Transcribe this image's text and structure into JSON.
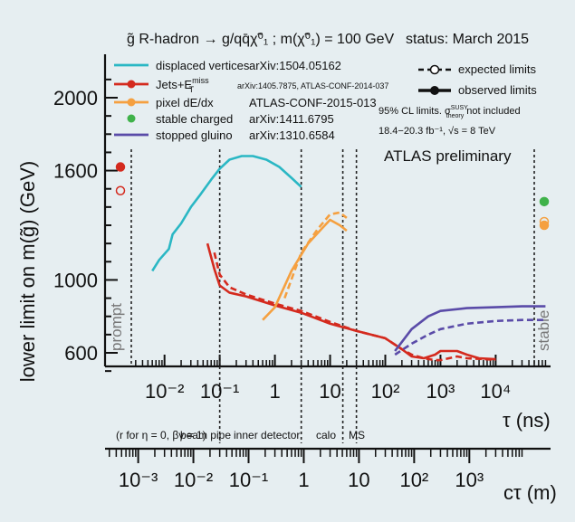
{
  "chart_data": {
    "type": "line",
    "title": "g̃ R-hadron → g/qq̄χ̃⁰₁ ; m(χ̃⁰₁) = 100 GeV",
    "status": "status: March 2015",
    "ylabel": "lower limit on m(g̃) (GeV)",
    "xlabel": "τ (ns)",
    "x2label": "cτ (m)",
    "x_scale": "log",
    "x2_scale": "log",
    "ylim": [
      480,
      2200
    ],
    "y_ticks": [
      600,
      1000,
      1600,
      2000
    ],
    "x_ticks_tau": [
      "10⁻²",
      "10⁻¹",
      "1",
      "10",
      "10²",
      "10³",
      "10⁴"
    ],
    "x_ticks_ctau": [
      "10⁻³",
      "10⁻²",
      "10⁻¹",
      "1",
      "10",
      "10²",
      "10³"
    ],
    "legend": {
      "entries": [
        {
          "name": "displaced vertices",
          "ref": "arXiv:1504.05162",
          "color": "#2ab7c4"
        },
        {
          "name": "Jets+E",
          "sup": "miss",
          "sub": "T",
          "ref": "arXiv:1405.7875, ATLAS-CONF-2014-037",
          "color": "#d42a1e"
        },
        {
          "name": "pixel dE/dx",
          "ref": "ATLAS-CONF-2015-013",
          "color": "#f5a040"
        },
        {
          "name": "stable charged",
          "ref": "arXiv:1411.6795",
          "color": "#3fb24a"
        },
        {
          "name": "stopped gluino",
          "ref": "arXiv:1310.6584",
          "color": "#5a4ba8"
        }
      ],
      "expected": "expected limits",
      "observed": "observed limits",
      "note1a": "95% CL limits. σ",
      "note1_sup": "SUSY",
      "note1_sub": "theory",
      "note1b": "not included",
      "note2": "18.4−20.3 fb⁻¹, √s = 8 TeV",
      "atlas": "ATLAS preliminary"
    },
    "region_labels": {
      "prompt": "prompt",
      "stable": "stable",
      "conv": "(r for η = 0, βγ = 1)",
      "beampipe": "beam pipe",
      "inner": "inner detector",
      "calo": "calo",
      "ms": "MS"
    },
    "region_bounds_tau": {
      "prompt": 0.0025,
      "beampipe": 0.1,
      "inner": 3,
      "calo": 17,
      "ms": 30,
      "stable": 50000
    },
    "series": [
      {
        "name": "displaced vertices",
        "key": "dv",
        "color": "#2ab7c4",
        "style": "solid",
        "points": [
          [
            0.006,
            1050
          ],
          [
            0.008,
            1110
          ],
          [
            0.012,
            1170
          ],
          [
            0.014,
            1250
          ],
          [
            0.02,
            1310
          ],
          [
            0.03,
            1400
          ],
          [
            0.045,
            1470
          ],
          [
            0.07,
            1550
          ],
          [
            0.1,
            1610
          ],
          [
            0.15,
            1660
          ],
          [
            0.25,
            1680
          ],
          [
            0.4,
            1680
          ],
          [
            0.7,
            1660
          ],
          [
            1.2,
            1620
          ],
          [
            2,
            1560
          ],
          [
            3,
            1510
          ]
        ]
      },
      {
        "name": "Jets+ETmiss observed",
        "key": "jets_obs",
        "color": "#d42a1e",
        "style": "solid",
        "points": [
          [
            0.06,
            1200
          ],
          [
            0.08,
            1060
          ],
          [
            0.1,
            970
          ],
          [
            0.15,
            930
          ],
          [
            0.3,
            910
          ],
          [
            1,
            860
          ],
          [
            3,
            820
          ],
          [
            10,
            760
          ],
          [
            30,
            720
          ],
          [
            100,
            680
          ],
          [
            200,
            620
          ],
          [
            300,
            580
          ],
          [
            500,
            570
          ],
          [
            800,
            590
          ],
          [
            1000,
            610
          ],
          [
            2000,
            610
          ],
          [
            3000,
            590
          ],
          [
            5000,
            570
          ],
          [
            10000,
            565
          ]
        ]
      },
      {
        "name": "Jets+ETmiss expected",
        "key": "jets_exp",
        "color": "#d42a1e",
        "style": "dashed",
        "points": [
          [
            0.08,
            1150
          ],
          [
            0.1,
            1030
          ],
          [
            0.15,
            960
          ],
          [
            0.3,
            920
          ],
          [
            1,
            870
          ],
          [
            3,
            830
          ],
          [
            10,
            770
          ],
          [
            30,
            720
          ],
          [
            100,
            680
          ],
          [
            200,
            620
          ],
          [
            300,
            590
          ],
          [
            500,
            570
          ],
          [
            800,
            560
          ],
          [
            1000,
            560
          ],
          [
            2000,
            580
          ],
          [
            3000,
            570
          ],
          [
            10000,
            562
          ]
        ]
      },
      {
        "name": "pixel dE/dx observed",
        "key": "pix_obs",
        "color": "#f5a040",
        "style": "solid",
        "points": [
          [
            0.6,
            780
          ],
          [
            1,
            850
          ],
          [
            2,
            1050
          ],
          [
            4,
            1200
          ],
          [
            7,
            1280
          ],
          [
            10,
            1330
          ],
          [
            15,
            1300
          ],
          [
            20,
            1270
          ]
        ]
      },
      {
        "name": "pixel dE/dx expected",
        "key": "pix_exp",
        "color": "#f5a040",
        "style": "dashed",
        "points": [
          [
            1.5,
            900
          ],
          [
            3,
            1150
          ],
          [
            6,
            1280
          ],
          [
            10,
            1360
          ],
          [
            15,
            1370
          ],
          [
            20,
            1340
          ]
        ]
      },
      {
        "name": "stopped gluino observed",
        "key": "stop_obs",
        "color": "#5a4ba8",
        "style": "solid",
        "points": [
          [
            150,
            610
          ],
          [
            300,
            730
          ],
          [
            600,
            800
          ],
          [
            1000,
            830
          ],
          [
            3000,
            845
          ],
          [
            10000,
            850
          ],
          [
            30000,
            855
          ],
          [
            80000,
            855
          ]
        ]
      },
      {
        "name": "stopped gluino expected",
        "key": "stop_exp",
        "color": "#5a4ba8",
        "style": "dashed",
        "points": [
          [
            150,
            590
          ],
          [
            300,
            650
          ],
          [
            600,
            700
          ],
          [
            1000,
            730
          ],
          [
            3000,
            760
          ],
          [
            10000,
            775
          ],
          [
            30000,
            780
          ],
          [
            80000,
            780
          ]
        ]
      }
    ],
    "markers": [
      {
        "key": "prompt_obs",
        "color": "#d42a1e",
        "filled": true,
        "position": "left",
        "y": 1620
      },
      {
        "key": "prompt_exp",
        "color": "#d42a1e",
        "filled": false,
        "position": "left",
        "y": 1490
      },
      {
        "key": "stable_green",
        "color": "#3fb24a",
        "filled": true,
        "position": "right",
        "y": 1430
      },
      {
        "key": "stable_orange_exp",
        "color": "#f5a040",
        "filled": false,
        "position": "right",
        "y": 1320
      },
      {
        "key": "stable_orange_obs",
        "color": "#f5a040",
        "filled": true,
        "position": "right",
        "y": 1300
      }
    ]
  }
}
